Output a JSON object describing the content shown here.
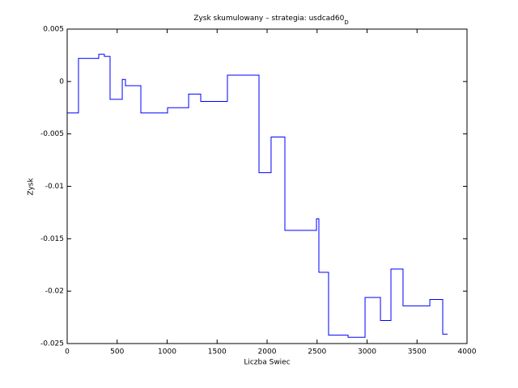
{
  "chart_data": {
    "type": "line",
    "step": "post",
    "title": "Zysk skumulowany – strategia: usdcad60",
    "title_subscript": "D",
    "x_label": "Liczba Swiec",
    "y_label": "Zysk",
    "x": [
      0,
      113,
      316,
      372,
      429,
      551,
      583,
      737,
      1004,
      1215,
      1336,
      1603,
      1919,
      2040,
      2178,
      2494,
      2518,
      2615,
      2810,
      2980,
      3134,
      3239,
      3360,
      3628,
      3757,
      3806
    ],
    "series": [
      {
        "color": "#0000ff",
        "values": [
          -0.003,
          0.0022,
          0.0026,
          0.0024,
          -0.0017,
          0.0002,
          -0.0004,
          -0.003,
          -0.0025,
          -0.0012,
          -0.0019,
          0.0006,
          -0.0087,
          -0.0053,
          -0.0142,
          -0.0131,
          -0.0182,
          -0.0242,
          -0.0244,
          -0.0206,
          -0.0228,
          -0.0179,
          -0.0214,
          -0.0208,
          -0.0241,
          -0.0241
        ]
      }
    ],
    "xlim": [
      0,
      4000
    ],
    "xticks": [
      0,
      500,
      1000,
      1500,
      2000,
      2500,
      3000,
      3500,
      4000
    ],
    "ylim": [
      -0.025,
      0.005
    ],
    "yticks": [
      -0.025,
      -0.02,
      -0.015,
      -0.01,
      -0.005,
      0,
      0.005
    ]
  }
}
